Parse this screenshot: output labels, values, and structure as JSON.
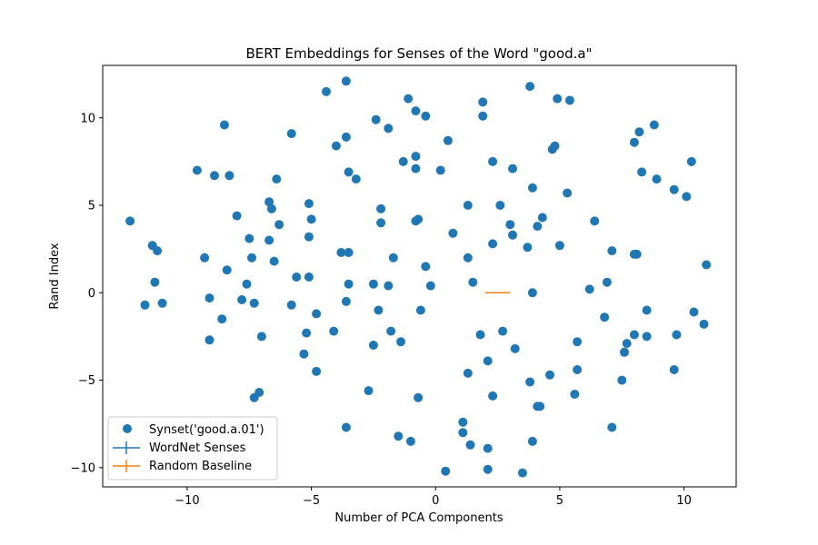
{
  "chart_data": {
    "type": "scatter",
    "title": "BERT Embeddings for Senses of the Word \"good.a\"",
    "xlabel": "Number of PCA Components",
    "ylabel": "Rand Index",
    "xlim": [
      -13.4,
      12.1
    ],
    "ylim": [
      -11.1,
      13.0
    ],
    "xticks": [
      -10,
      -5,
      0,
      5,
      10
    ],
    "yticks": [
      -10,
      -5,
      0,
      5,
      10
    ],
    "xtick_labels": [
      "−10",
      "−5",
      "0",
      "5",
      "10"
    ],
    "ytick_labels": [
      "−10",
      "−5",
      "0",
      "5",
      "10"
    ],
    "grid": false,
    "legend_position": "lower-left",
    "series": [
      {
        "name": "Synset('good.a.01')",
        "kind": "scatter",
        "color": "#1f77b4",
        "points": [
          [
            -12.3,
            4.1
          ],
          [
            -11.7,
            -0.7
          ],
          [
            -11.4,
            2.7
          ],
          [
            -11.3,
            0.6
          ],
          [
            -11.2,
            2.4
          ],
          [
            -11.0,
            -0.6
          ],
          [
            -9.6,
            7.0
          ],
          [
            -9.3,
            2.0
          ],
          [
            -9.1,
            -0.3
          ],
          [
            -9.1,
            -2.7
          ],
          [
            -8.9,
            6.7
          ],
          [
            -8.6,
            -1.5
          ],
          [
            -8.5,
            9.6
          ],
          [
            -8.4,
            1.3
          ],
          [
            -8.3,
            6.7
          ],
          [
            -8.0,
            4.4
          ],
          [
            -7.8,
            -0.4
          ],
          [
            -7.6,
            0.5
          ],
          [
            -7.5,
            3.1
          ],
          [
            -7.4,
            2.0
          ],
          [
            -7.3,
            -0.6
          ],
          [
            -7.3,
            -6.0
          ],
          [
            -7.1,
            -5.7
          ],
          [
            -7.0,
            -2.5
          ],
          [
            -6.7,
            5.2
          ],
          [
            -6.7,
            3.0
          ],
          [
            -6.6,
            4.8
          ],
          [
            -6.5,
            1.8
          ],
          [
            -6.4,
            6.5
          ],
          [
            -6.3,
            3.9
          ],
          [
            -5.8,
            9.1
          ],
          [
            -5.8,
            -0.7
          ],
          [
            -5.6,
            0.9
          ],
          [
            -5.3,
            -3.5
          ],
          [
            -5.2,
            -2.3
          ],
          [
            -5.1,
            5.1
          ],
          [
            -5.1,
            3.2
          ],
          [
            -5.1,
            0.9
          ],
          [
            -5.0,
            4.2
          ],
          [
            -4.8,
            -1.2
          ],
          [
            -4.8,
            -4.5
          ],
          [
            -4.4,
            11.5
          ],
          [
            -4.1,
            -2.2
          ],
          [
            -4.0,
            8.4
          ],
          [
            -3.8,
            2.3
          ],
          [
            -3.6,
            12.1
          ],
          [
            -3.6,
            8.9
          ],
          [
            -3.6,
            -0.5
          ],
          [
            -3.6,
            -7.7
          ],
          [
            -3.5,
            6.9
          ],
          [
            -3.5,
            2.3
          ],
          [
            -3.5,
            0.5
          ],
          [
            -3.2,
            6.5
          ],
          [
            -2.7,
            -5.6
          ],
          [
            -2.5,
            0.5
          ],
          [
            -2.5,
            -3.0
          ],
          [
            -2.4,
            9.9
          ],
          [
            -2.3,
            -1.0
          ],
          [
            -2.2,
            4.8
          ],
          [
            -2.2,
            4.0
          ],
          [
            -1.9,
            9.4
          ],
          [
            -1.9,
            0.4
          ],
          [
            -1.8,
            -2.2
          ],
          [
            -1.7,
            2.0
          ],
          [
            -1.5,
            -8.2
          ],
          [
            -1.3,
            7.5
          ],
          [
            -1.4,
            -2.8
          ],
          [
            -1.1,
            11.1
          ],
          [
            -1.0,
            -8.5
          ],
          [
            -0.8,
            10.4
          ],
          [
            -0.8,
            7.8
          ],
          [
            -0.8,
            7.1
          ],
          [
            -0.8,
            4.1
          ],
          [
            -0.7,
            4.2
          ],
          [
            -0.7,
            -6.0
          ],
          [
            -0.6,
            -1.0
          ],
          [
            -0.4,
            10.1
          ],
          [
            -0.4,
            1.5
          ],
          [
            -0.2,
            0.4
          ],
          [
            0.2,
            7.0
          ],
          [
            0.4,
            -10.2
          ],
          [
            0.5,
            8.7
          ],
          [
            0.7,
            3.4
          ],
          [
            1.1,
            -7.4
          ],
          [
            1.1,
            -8.0
          ],
          [
            1.3,
            -4.6
          ],
          [
            1.3,
            5.0
          ],
          [
            1.3,
            2.0
          ],
          [
            1.4,
            -8.7
          ],
          [
            1.5,
            0.6
          ],
          [
            1.8,
            -2.4
          ],
          [
            1.9,
            10.9
          ],
          [
            1.9,
            10.1
          ],
          [
            2.1,
            -3.9
          ],
          [
            2.1,
            -10.1
          ],
          [
            2.1,
            -8.9
          ],
          [
            2.3,
            7.5
          ],
          [
            2.3,
            2.8
          ],
          [
            2.3,
            -5.9
          ],
          [
            2.6,
            5.0
          ],
          [
            2.7,
            -2.2
          ],
          [
            3.0,
            3.9
          ],
          [
            3.1,
            3.3
          ],
          [
            3.1,
            7.1
          ],
          [
            3.2,
            -3.2
          ],
          [
            3.5,
            -10.3
          ],
          [
            3.7,
            2.6
          ],
          [
            3.8,
            11.8
          ],
          [
            3.8,
            -5.1
          ],
          [
            3.9,
            -8.5
          ],
          [
            3.9,
            6.0
          ],
          [
            3.9,
            0.0
          ],
          [
            4.1,
            -6.5
          ],
          [
            4.1,
            3.8
          ],
          [
            4.2,
            -6.5
          ],
          [
            4.3,
            4.3
          ],
          [
            4.6,
            -4.7
          ],
          [
            4.7,
            8.2
          ],
          [
            4.8,
            8.4
          ],
          [
            4.9,
            11.1
          ],
          [
            5.0,
            2.7
          ],
          [
            5.3,
            5.7
          ],
          [
            5.4,
            11.0
          ],
          [
            5.6,
            -5.8
          ],
          [
            5.7,
            -2.8
          ],
          [
            5.7,
            -4.4
          ],
          [
            6.2,
            0.2
          ],
          [
            6.4,
            4.1
          ],
          [
            6.8,
            -1.4
          ],
          [
            6.9,
            0.6
          ],
          [
            7.1,
            2.4
          ],
          [
            7.1,
            -7.7
          ],
          [
            7.5,
            -5.0
          ],
          [
            7.6,
            -3.4
          ],
          [
            7.7,
            -2.9
          ],
          [
            8.0,
            8.6
          ],
          [
            8.0,
            2.2
          ],
          [
            8.0,
            -2.4
          ],
          [
            8.1,
            2.2
          ],
          [
            8.2,
            9.2
          ],
          [
            8.3,
            6.9
          ],
          [
            8.5,
            -1.0
          ],
          [
            8.5,
            -2.5
          ],
          [
            8.8,
            9.6
          ],
          [
            8.9,
            6.5
          ],
          [
            9.6,
            5.9
          ],
          [
            9.6,
            -4.4
          ],
          [
            9.7,
            -2.4
          ],
          [
            10.1,
            5.5
          ],
          [
            10.3,
            7.5
          ],
          [
            10.4,
            -1.1
          ],
          [
            10.8,
            -1.8
          ],
          [
            10.9,
            1.6
          ]
        ]
      },
      {
        "name": "WordNet Senses",
        "kind": "errorbar",
        "color": "#1f77b4",
        "x": [
          2.0,
          3.0
        ],
        "y": [
          0.0,
          0.0
        ]
      },
      {
        "name": "Random Baseline",
        "kind": "errorbar",
        "color": "#ff7f0e",
        "x": [
          2.0,
          3.0
        ],
        "y": [
          0.0,
          0.0
        ]
      }
    ]
  }
}
